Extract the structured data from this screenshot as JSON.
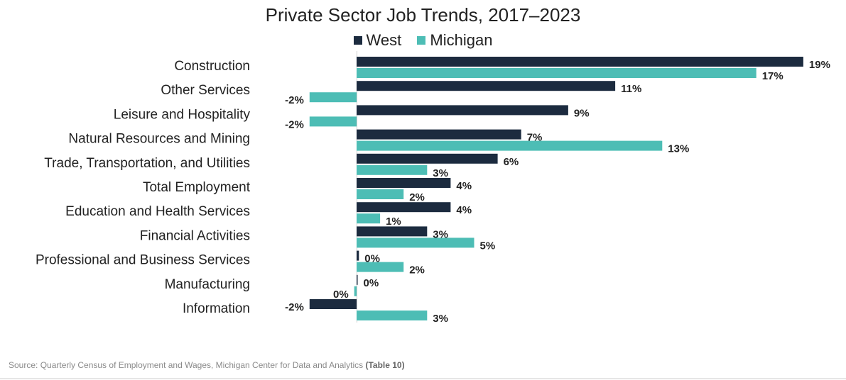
{
  "chart_data": {
    "type": "bar",
    "orientation": "horizontal",
    "title": "Private Sector Job Trends, 2017–2023",
    "categories": [
      "Construction",
      "Other Services",
      "Leisure and Hospitality",
      "Natural Resources and Mining",
      "Trade, Transportation, and Utilities",
      "Total Employment",
      "Education and Health Services",
      "Financial Activities",
      "Professional and Business Services",
      "Manufacturing",
      "Information"
    ],
    "series": [
      {
        "name": "West",
        "color": "#1c2b3f",
        "values": [
          19,
          11,
          9,
          7,
          6,
          4,
          4,
          3,
          0.1,
          0,
          -2
        ],
        "labels": [
          "19%",
          "11%",
          "9%",
          "7%",
          "6%",
          "4%",
          "4%",
          "3%",
          "0%",
          "0%",
          "-2%"
        ]
      },
      {
        "name": "Michigan",
        "color": "#4dbdb5",
        "values": [
          17,
          -2,
          -2,
          13,
          3,
          2,
          1,
          5,
          2,
          -0.1,
          3
        ],
        "labels": [
          "17%",
          "-2%",
          "-2%",
          "13%",
          "3%",
          "2%",
          "1%",
          "5%",
          "2%",
          "0%",
          "3%"
        ]
      }
    ],
    "value_unit": "%",
    "xlim": [
      -3,
      20
    ],
    "grid": false,
    "legend_position": "top-center"
  },
  "footer": {
    "source_text": "Source: Quarterly Census of Employment and Wages, Michigan Center for Data and Analytics ",
    "source_ref": "(Table 10)"
  }
}
